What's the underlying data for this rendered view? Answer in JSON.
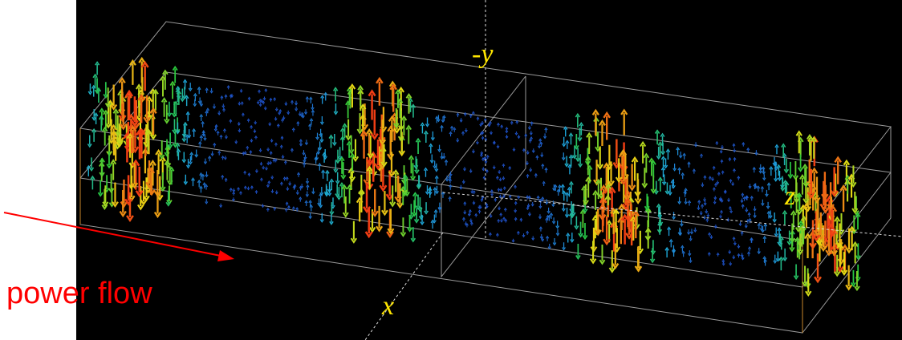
{
  "axes": {
    "y_label": "-y",
    "x_label": "x",
    "z_label": "z"
  },
  "annotation": {
    "text": "power flow"
  }
}
